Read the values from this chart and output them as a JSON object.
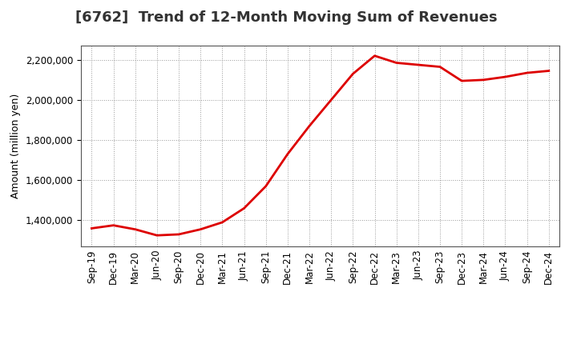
{
  "title": "[6762]  Trend of 12-Month Moving Sum of Revenues",
  "ylabel": "Amount (million yen)",
  "line_color": "#dd0000",
  "background_color": "#ffffff",
  "grid_color": "#999999",
  "x_labels": [
    "Sep-19",
    "Dec-19",
    "Mar-20",
    "Jun-20",
    "Sep-20",
    "Dec-20",
    "Mar-21",
    "Jun-21",
    "Sep-21",
    "Dec-21",
    "Mar-22",
    "Jun-22",
    "Sep-22",
    "Dec-22",
    "Mar-23",
    "Jun-23",
    "Sep-23",
    "Dec-23",
    "Mar-24",
    "Jun-24",
    "Sep-24",
    "Dec-24"
  ],
  "values": [
    1360000,
    1375000,
    1355000,
    1325000,
    1330000,
    1355000,
    1390000,
    1460000,
    1570000,
    1730000,
    1870000,
    2000000,
    2130000,
    2220000,
    2185000,
    2175000,
    2165000,
    2095000,
    2100000,
    2115000,
    2135000,
    2145000
  ],
  "ylim": [
    1270000,
    2270000
  ],
  "yticks": [
    1400000,
    1600000,
    1800000,
    2000000,
    2200000
  ],
  "title_fontsize": 13,
  "axis_fontsize": 9,
  "tick_fontsize": 8.5
}
